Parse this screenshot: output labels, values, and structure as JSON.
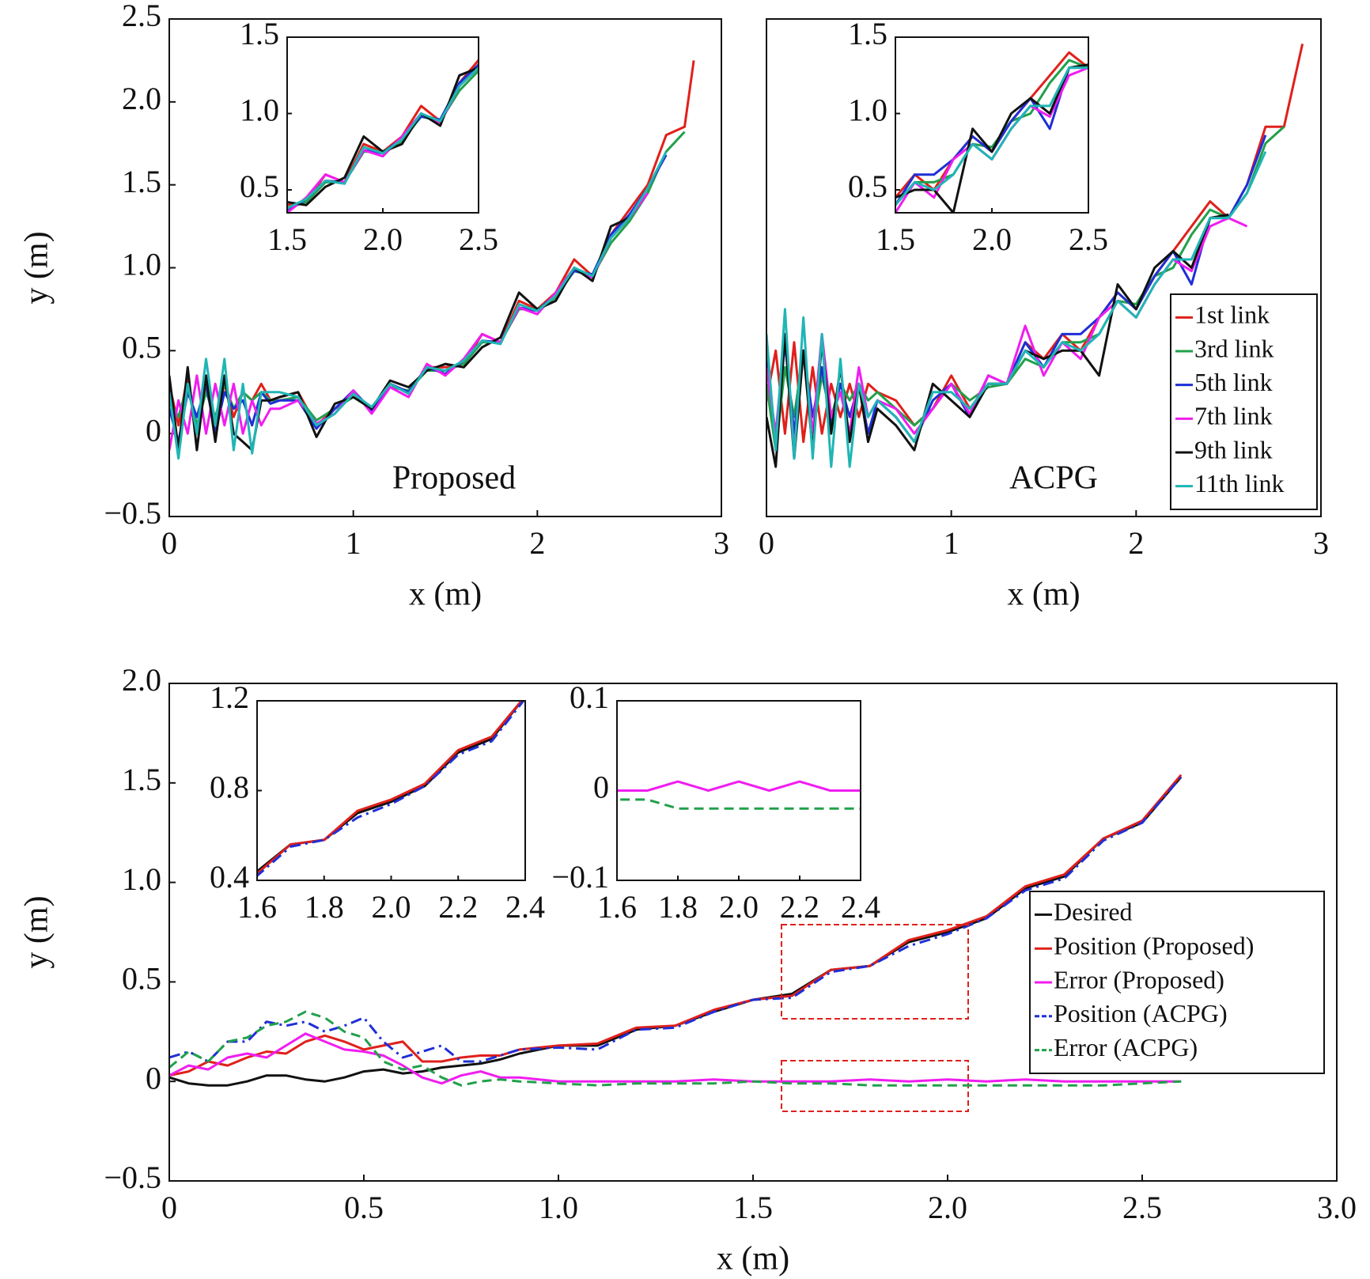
{
  "chart_data": [
    {
      "type": "line",
      "annotation": "Proposed",
      "xlabel": "x (m)",
      "ylabel": "y (m)",
      "xlim": [
        0,
        3
      ],
      "ylim": [
        -0.5,
        2.5
      ],
      "xticks": [
        0,
        1,
        2,
        3
      ],
      "yticks": [
        {
          "value": -0.5,
          "label": "−0.5"
        },
        0,
        0.5,
        {
          "value": 1.0,
          "label": "1.0"
        },
        1.5,
        {
          "value": 2.0,
          "label": "2.0"
        },
        2.5
      ],
      "x": [
        0,
        0.05,
        0.1,
        0.15,
        0.2,
        0.25,
        0.3,
        0.35,
        0.4,
        0.45,
        0.5,
        0.55,
        0.6,
        0.7,
        0.8,
        0.9,
        1.0,
        1.1,
        1.2,
        1.3,
        1.4,
        1.5,
        1.6,
        1.7,
        1.8,
        1.9,
        2.0,
        2.1,
        2.2,
        2.3,
        2.4,
        2.5,
        2.6,
        2.7,
        2.8,
        2.85
      ],
      "series": [
        {
          "name": "1st link",
          "color": "#e0201b",
          "values": [
            0.3,
            0.05,
            0.35,
            0.0,
            0.3,
            0.05,
            0.3,
            0.1,
            0.25,
            0.2,
            0.3,
            0.2,
            0.22,
            0.25,
            0.05,
            0.15,
            0.25,
            0.15,
            0.3,
            0.25,
            0.4,
            0.4,
            0.42,
            0.6,
            0.55,
            0.8,
            0.75,
            0.85,
            1.05,
            0.95,
            1.2,
            1.35,
            1.5,
            1.8,
            1.85,
            2.25
          ]
        },
        {
          "name": "3rd link",
          "color": "#22a04b",
          "values": [
            0.2,
            0.1,
            0.3,
            0.05,
            0.25,
            0.1,
            0.3,
            0.15,
            0.25,
            0.2,
            0.25,
            0.2,
            0.2,
            0.22,
            0.08,
            0.15,
            0.22,
            0.15,
            0.28,
            0.26,
            0.38,
            0.38,
            0.42,
            0.55,
            0.55,
            0.75,
            0.75,
            0.82,
            0.98,
            0.95,
            1.15,
            1.28,
            1.45,
            1.7,
            1.82,
            null
          ]
        },
        {
          "name": "5th link",
          "color": "#1f2fd6",
          "values": [
            0.15,
            -0.05,
            0.25,
            0.1,
            0.3,
            0.0,
            0.25,
            0.15,
            0.2,
            0.05,
            0.25,
            0.18,
            0.2,
            0.2,
            0.03,
            0.15,
            0.26,
            0.14,
            0.3,
            0.25,
            0.4,
            0.36,
            0.44,
            0.56,
            0.55,
            0.76,
            0.74,
            0.84,
            0.98,
            0.96,
            1.2,
            1.32,
            1.48,
            1.68,
            null,
            null
          ]
        },
        {
          "name": "7th link",
          "color": "#f01df0",
          "values": [
            -0.1,
            0.2,
            0.0,
            0.35,
            0.0,
            0.3,
            0.05,
            0.3,
            0.0,
            0.2,
            0.05,
            0.15,
            0.15,
            0.2,
            0.06,
            0.12,
            0.26,
            0.12,
            0.28,
            0.22,
            0.42,
            0.35,
            0.45,
            0.6,
            0.55,
            0.76,
            0.72,
            0.85,
            1.0,
            0.94,
            1.18,
            1.3,
            1.45,
            null,
            null,
            null
          ]
        },
        {
          "name": "9th link",
          "color": "#111111",
          "values": [
            0.35,
            -0.1,
            0.4,
            -0.1,
            0.35,
            -0.05,
            0.35,
            0.0,
            -0.05,
            -0.1,
            0.2,
            0.2,
            0.22,
            0.25,
            -0.02,
            0.18,
            0.22,
            0.15,
            0.32,
            0.28,
            0.38,
            0.42,
            0.4,
            0.52,
            0.58,
            0.85,
            0.75,
            0.8,
            1.0,
            0.92,
            1.25,
            1.3,
            null,
            null,
            null,
            null
          ]
        },
        {
          "name": "11th link",
          "color": "#20b5b5",
          "values": [
            0.25,
            -0.15,
            0.3,
            0.0,
            0.45,
            0.05,
            0.45,
            -0.1,
            0.3,
            -0.12,
            0.25,
            0.25,
            0.25,
            0.22,
            0.05,
            0.12,
            0.24,
            0.16,
            0.3,
            0.24,
            0.4,
            0.38,
            0.44,
            0.56,
            0.54,
            0.78,
            0.74,
            0.83,
            1.0,
            0.95,
            1.18,
            1.3,
            1.48,
            1.7,
            null,
            null
          ]
        }
      ],
      "insets": [
        {
          "xlim": [
            1.5,
            2.5
          ],
          "ylim": [
            0.35,
            1.5
          ],
          "xticks": [
            1.5,
            {
              "value": 2.0,
              "label": "2.0"
            },
            2.5
          ],
          "yticks": [
            0.5,
            {
              "value": 1.0,
              "label": "1.0"
            },
            1.5
          ]
        }
      ]
    },
    {
      "type": "line",
      "annotation": "ACPG",
      "xlabel": "x (m)",
      "legend": "right",
      "xlim": [
        0,
        3
      ],
      "ylim": [
        -0.5,
        2.5
      ],
      "xticks": [
        0,
        1,
        2,
        3
      ],
      "x": [
        0,
        0.05,
        0.1,
        0.15,
        0.2,
        0.25,
        0.3,
        0.35,
        0.4,
        0.45,
        0.5,
        0.55,
        0.6,
        0.7,
        0.8,
        0.9,
        1.0,
        1.1,
        1.2,
        1.3,
        1.4,
        1.5,
        1.6,
        1.7,
        1.8,
        1.9,
        2.0,
        2.1,
        2.2,
        2.3,
        2.4,
        2.5,
        2.6,
        2.7,
        2.8,
        2.9
      ],
      "series": [
        {
          "name": "1st link",
          "color": "#e0201b",
          "values": [
            0.2,
            0.5,
            0.0,
            0.55,
            -0.05,
            0.4,
            0.0,
            0.3,
            0.1,
            0.3,
            0.1,
            0.3,
            0.25,
            0.2,
            0.05,
            0.15,
            0.35,
            0.15,
            0.3,
            0.3,
            0.55,
            0.45,
            0.6,
            0.5,
            0.7,
            0.85,
            0.75,
            0.95,
            1.1,
            1.25,
            1.4,
            1.3,
            1.5,
            1.85,
            1.85,
            2.35
          ]
        },
        {
          "name": "3rd link",
          "color": "#22a04b",
          "values": [
            0.3,
            -0.1,
            0.4,
            0.1,
            0.5,
            0.0,
            0.35,
            0.1,
            0.3,
            0.2,
            0.3,
            0.2,
            0.25,
            0.15,
            0.05,
            0.15,
            0.3,
            0.2,
            0.28,
            0.3,
            0.45,
            0.4,
            0.55,
            0.55,
            0.6,
            0.8,
            0.78,
            0.95,
            1.0,
            1.2,
            1.35,
            1.3,
            1.45,
            1.75,
            1.85,
            null
          ]
        },
        {
          "name": "5th link",
          "color": "#1f2fd6",
          "values": [
            0.5,
            -0.05,
            0.55,
            0.0,
            0.5,
            0.1,
            0.4,
            0.05,
            0.3,
            0.1,
            0.3,
            0.0,
            0.2,
            0.1,
            -0.05,
            0.2,
            0.3,
            0.1,
            0.35,
            0.3,
            0.55,
            0.4,
            0.6,
            0.6,
            0.7,
            0.85,
            0.75,
            0.95,
            1.1,
            0.9,
            1.3,
            1.3,
            1.5,
            1.8,
            null,
            null
          ]
        },
        {
          "name": "7th link",
          "color": "#f01df0",
          "values": [
            0.4,
            0.0,
            0.6,
            -0.1,
            0.5,
            0.0,
            0.6,
            0.1,
            0.25,
            0.0,
            0.4,
            0.1,
            0.2,
            0.15,
            0.0,
            0.15,
            0.3,
            0.12,
            0.35,
            0.3,
            0.65,
            0.35,
            0.55,
            0.45,
            0.7,
            0.8,
            0.7,
            0.9,
            1.05,
            0.98,
            1.25,
            1.3,
            1.25,
            null,
            null,
            null
          ]
        },
        {
          "name": "9th link",
          "color": "#111111",
          "values": [
            0.1,
            -0.2,
            0.6,
            -0.15,
            0.5,
            -0.1,
            0.55,
            0.0,
            0.4,
            -0.05,
            0.3,
            -0.05,
            0.15,
            0.05,
            -0.1,
            0.3,
            0.2,
            0.1,
            0.3,
            0.3,
            0.5,
            0.45,
            0.5,
            0.5,
            0.35,
            0.9,
            0.75,
            1.0,
            1.1,
            1.0,
            1.3,
            1.32,
            null,
            null,
            null,
            null
          ]
        },
        {
          "name": "11th link",
          "color": "#20b5b5",
          "values": [
            0.6,
            -0.1,
            0.75,
            -0.15,
            0.7,
            -0.15,
            0.6,
            -0.2,
            0.45,
            -0.2,
            0.3,
            0.1,
            0.2,
            0.1,
            -0.05,
            0.25,
            0.25,
            0.15,
            0.3,
            0.3,
            0.5,
            0.4,
            0.55,
            0.5,
            0.6,
            0.8,
            0.7,
            0.9,
            1.05,
            1.05,
            1.3,
            1.3,
            1.45,
            1.7,
            null,
            null
          ]
        }
      ],
      "insets": [
        {
          "xlim": [
            1.5,
            2.5
          ],
          "ylim": [
            0.35,
            1.5
          ],
          "xticks": [
            1.5,
            {
              "value": 2.0,
              "label": "2.0"
            },
            2.5
          ],
          "yticks": [
            0.5,
            {
              "value": 1.0,
              "label": "1.0"
            },
            1.5
          ]
        }
      ]
    },
    {
      "type": "line",
      "xlabel": "x (m)",
      "ylabel": "y (m)",
      "legend": "lower right",
      "xlim": [
        0,
        3
      ],
      "ylim": [
        -0.5,
        2.0
      ],
      "xticks": [
        0,
        0.5,
        {
          "value": 1.0,
          "label": "1.0"
        },
        1.5,
        {
          "value": 2.0,
          "label": "2.0"
        },
        2.5,
        {
          "value": 3.0,
          "label": "3.0"
        }
      ],
      "yticks": [
        {
          "value": -0.5,
          "label": "−0.5"
        },
        0,
        0.5,
        {
          "value": 1.0,
          "label": "1.0"
        },
        1.5,
        {
          "value": 2.0,
          "label": "2.0"
        }
      ],
      "x": [
        0,
        0.05,
        0.1,
        0.15,
        0.2,
        0.25,
        0.3,
        0.35,
        0.4,
        0.45,
        0.5,
        0.55,
        0.6,
        0.65,
        0.7,
        0.75,
        0.8,
        0.85,
        0.9,
        1.0,
        1.1,
        1.2,
        1.3,
        1.4,
        1.5,
        1.6,
        1.7,
        1.8,
        1.9,
        2.0,
        2.1,
        2.2,
        2.3,
        2.4,
        2.5,
        2.6
      ],
      "series": [
        {
          "name": "Desired",
          "color": "#111111",
          "dash": "solid",
          "values": [
            0.02,
            -0.01,
            -0.02,
            -0.02,
            0.0,
            0.03,
            0.03,
            0.01,
            0.0,
            0.02,
            0.05,
            0.06,
            0.04,
            0.05,
            0.07,
            0.08,
            0.09,
            0.11,
            0.14,
            0.18,
            0.18,
            0.26,
            0.28,
            0.35,
            0.41,
            0.44,
            0.56,
            0.58,
            0.7,
            0.75,
            0.82,
            0.97,
            1.03,
            1.22,
            1.3,
            1.53
          ]
        },
        {
          "name": "Position (Proposed)",
          "color": "#e0201b",
          "dash": "solid",
          "values": [
            0.03,
            0.05,
            0.1,
            0.08,
            0.12,
            0.15,
            0.14,
            0.2,
            0.23,
            0.2,
            0.16,
            0.18,
            0.2,
            0.1,
            0.1,
            0.12,
            0.13,
            0.13,
            0.16,
            0.18,
            0.19,
            0.27,
            0.28,
            0.36,
            0.41,
            0.43,
            0.56,
            0.58,
            0.71,
            0.76,
            0.83,
            0.98,
            1.04,
            1.22,
            1.31,
            1.54
          ]
        },
        {
          "name": "Error (Proposed)",
          "color": "#f01df0",
          "dash": "solid",
          "values": [
            0.03,
            0.08,
            0.06,
            0.12,
            0.14,
            0.12,
            0.18,
            0.24,
            0.2,
            0.16,
            0.15,
            0.13,
            0.08,
            0.02,
            -0.01,
            0.03,
            0.05,
            0.02,
            0.02,
            0.0,
            0.0,
            0.0,
            0.0,
            0.01,
            0.0,
            0.0,
            0.0,
            0.01,
            0.0,
            0.01,
            0.0,
            0.01,
            0.0,
            0.0,
            0.0,
            0.0
          ]
        },
        {
          "name": "Position (ACPG)",
          "color": "#1f2fd6",
          "dash": "dashdot",
          "values": [
            0.12,
            0.15,
            0.1,
            0.2,
            0.2,
            0.3,
            0.28,
            0.3,
            0.25,
            0.28,
            0.32,
            0.2,
            0.12,
            0.15,
            0.18,
            0.1,
            0.1,
            0.13,
            0.16,
            0.17,
            0.16,
            0.26,
            0.27,
            0.35,
            0.41,
            0.42,
            0.55,
            0.58,
            0.68,
            0.74,
            0.82,
            0.96,
            1.02,
            1.21,
            1.3,
            1.53
          ]
        },
        {
          "name": "Error (ACPG)",
          "color": "#22a04b",
          "dash": "dashed",
          "values": [
            0.07,
            0.15,
            0.1,
            0.2,
            0.22,
            0.28,
            0.3,
            0.35,
            0.32,
            0.25,
            0.22,
            0.1,
            0.06,
            0.08,
            0.02,
            -0.02,
            0.0,
            0.01,
            0.0,
            -0.01,
            -0.02,
            -0.01,
            -0.01,
            -0.01,
            0.0,
            -0.01,
            -0.01,
            -0.02,
            -0.02,
            -0.02,
            -0.02,
            -0.02,
            -0.02,
            -0.02,
            -0.01,
            0.0
          ]
        }
      ],
      "insets": [
        {
          "xlim": [
            1.6,
            2.4
          ],
          "ylim": [
            0.4,
            1.2
          ],
          "xticks": [
            1.6,
            1.8,
            {
              "value": 2.0,
              "label": "2.0"
            },
            2.2,
            2.4
          ],
          "yticks": [
            0.4,
            0.8,
            1.2
          ]
        },
        {
          "xlim": [
            1.6,
            2.4
          ],
          "ylim": [
            -0.1,
            0.1
          ],
          "xticks": [
            1.6,
            1.8,
            {
              "value": 2.0,
              "label": "2.0"
            },
            2.2,
            2.4
          ],
          "yticks": [
            {
              "value": -0.1,
              "label": "−0.1"
            },
            0,
            0.1
          ]
        }
      ]
    }
  ]
}
